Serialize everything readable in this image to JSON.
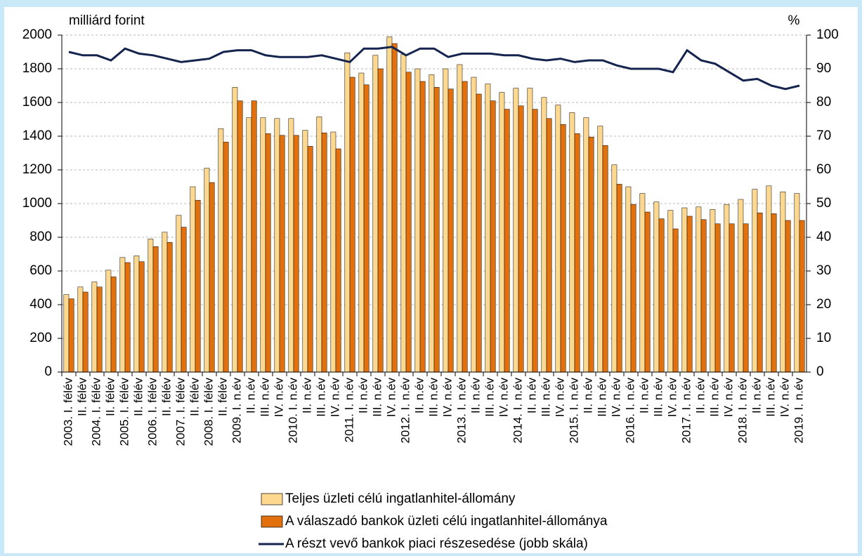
{
  "chart_data": {
    "type": "bar-line",
    "y_label": "milliárd forint",
    "y2_label": "%",
    "categories": [
      "2003. I. félév",
      "II. félév",
      "2004. I. félév",
      "II. félév",
      "2005. I. félév",
      "II. félév",
      "2006. I. félév",
      "II. félév",
      "2007. I. félév",
      "II. félév",
      "2008. I. félév",
      "II. félév",
      "2009. I. n.év",
      "II. n.év",
      "III. n.év",
      "IV. n.év",
      "2010. I. n.év",
      "II. n.év",
      "III. n.év",
      "IV. n.év",
      "2011. I. n.év",
      "II. n.év",
      "III. n.év",
      "IV. n.év",
      "2012. I. n.év",
      "II. n.év",
      "III. n.év",
      "IV. n.év",
      "2013. I. n.év",
      "II. n.év",
      "III. n.év",
      "IV. n.év",
      "2014. I. n.év",
      "II. n.év",
      "III. n.év",
      "IV. n.év",
      "2015. I. n.év",
      "II. n.év",
      "III. n.év",
      "IV. n.év",
      "2016. I. n.év",
      "II. n.év",
      "III. n.év",
      "IV. n.év",
      "2017. I. n.év",
      "II. n.év",
      "III. n.év",
      "IV. n.év",
      "2018. I. n.év",
      "II. n.év",
      "III. n.év",
      "IV. n.év",
      "2019. I. n.év"
    ],
    "series": [
      {
        "name": "Teljes üzleti célú ingatlanhitel-állomány",
        "type": "bar",
        "color": "#fdd88e",
        "values": [
          460,
          505,
          535,
          605,
          680,
          690,
          790,
          830,
          930,
          1100,
          1210,
          1445,
          1690,
          1510,
          1510,
          1505,
          1505,
          1435,
          1515,
          1425,
          1895,
          1775,
          1880,
          1990,
          1885,
          1800,
          1765,
          1800,
          1825,
          1750,
          1710,
          1660,
          1685,
          1685,
          1630,
          1585,
          1540,
          1510,
          1460,
          1230,
          1100,
          1060,
          1010,
          960,
          975,
          980,
          965,
          995,
          1025,
          1085,
          1105,
          1070,
          1060
        ]
      },
      {
        "name": "A válaszadó bankok üzleti célú ingatlanhitel-állománya",
        "type": "bar",
        "color": "#e2710d",
        "values": [
          435,
          475,
          505,
          565,
          650,
          655,
          745,
          770,
          860,
          1020,
          1125,
          1365,
          1610,
          1610,
          1415,
          1405,
          1405,
          1340,
          1420,
          1325,
          1750,
          1705,
          1800,
          1950,
          1780,
          1725,
          1690,
          1680,
          1725,
          1650,
          1610,
          1560,
          1580,
          1560,
          1505,
          1470,
          1415,
          1395,
          1345,
          1115,
          995,
          950,
          910,
          850,
          925,
          905,
          880,
          880,
          880,
          945,
          940,
          900,
          900
        ]
      },
      {
        "name": "A részt vevő bankok piaci részesedése (jobb skála)",
        "type": "line",
        "axis": "y2",
        "color": "#14244f",
        "values": [
          95,
          94,
          94,
          92.5,
          96,
          94.5,
          94,
          93,
          92,
          92.5,
          93,
          95,
          95.5,
          95.5,
          94,
          93.5,
          93.5,
          93.5,
          94,
          93,
          92,
          96,
          96,
          96.5,
          94,
          96,
          96,
          93.5,
          94.5,
          94.5,
          94.5,
          94,
          94,
          93,
          92.5,
          93,
          92,
          92.5,
          92.5,
          91,
          90,
          90,
          90,
          89,
          95.5,
          92.5,
          91.5,
          89,
          86.5,
          87,
          85,
          84,
          85
        ]
      }
    ],
    "ylim": [
      0,
      2000
    ],
    "yticks": [
      0,
      200,
      400,
      600,
      800,
      1000,
      1200,
      1400,
      1600,
      1800,
      2000
    ],
    "y2lim": [
      0,
      100
    ],
    "y2ticks": [
      0,
      10,
      20,
      30,
      40,
      50,
      60,
      70,
      80,
      90,
      100
    ],
    "grid": true
  }
}
